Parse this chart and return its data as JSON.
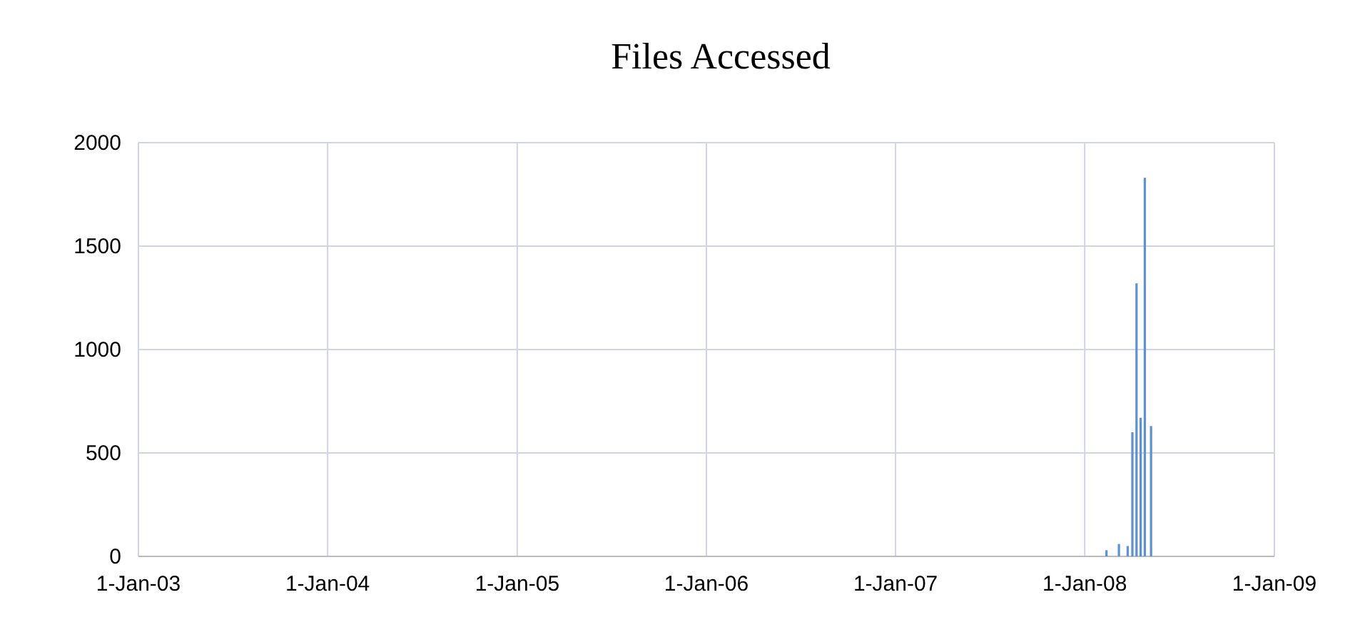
{
  "chart_data": {
    "type": "bar",
    "title": "Files Accessed",
    "x": [
      "2008-02-12",
      "2008-03-07",
      "2008-03-24",
      "2008-04-02",
      "2008-04-10",
      "2008-04-18",
      "2008-04-26",
      "2008-05-08"
    ],
    "values": [
      30,
      60,
      50,
      600,
      1320,
      670,
      1830,
      630
    ],
    "color": "#5b8fe0",
    "xlim": [
      "2003-01-01",
      "2009-01-01"
    ],
    "xticks": [
      {
        "value": "2003-01-01",
        "label": "1-Jan-03"
      },
      {
        "value": "2004-01-01",
        "label": "1-Jan-04"
      },
      {
        "value": "2005-01-01",
        "label": "1-Jan-05"
      },
      {
        "value": "2006-01-01",
        "label": "1-Jan-06"
      },
      {
        "value": "2007-01-01",
        "label": "1-Jan-07"
      },
      {
        "value": "2008-01-01",
        "label": "1-Jan-08"
      },
      {
        "value": "2009-01-01",
        "label": "1-Jan-09"
      }
    ],
    "ylim": [
      0,
      2000
    ],
    "yticks": [
      0,
      500,
      1000,
      1500,
      2000
    ],
    "grid": true
  }
}
